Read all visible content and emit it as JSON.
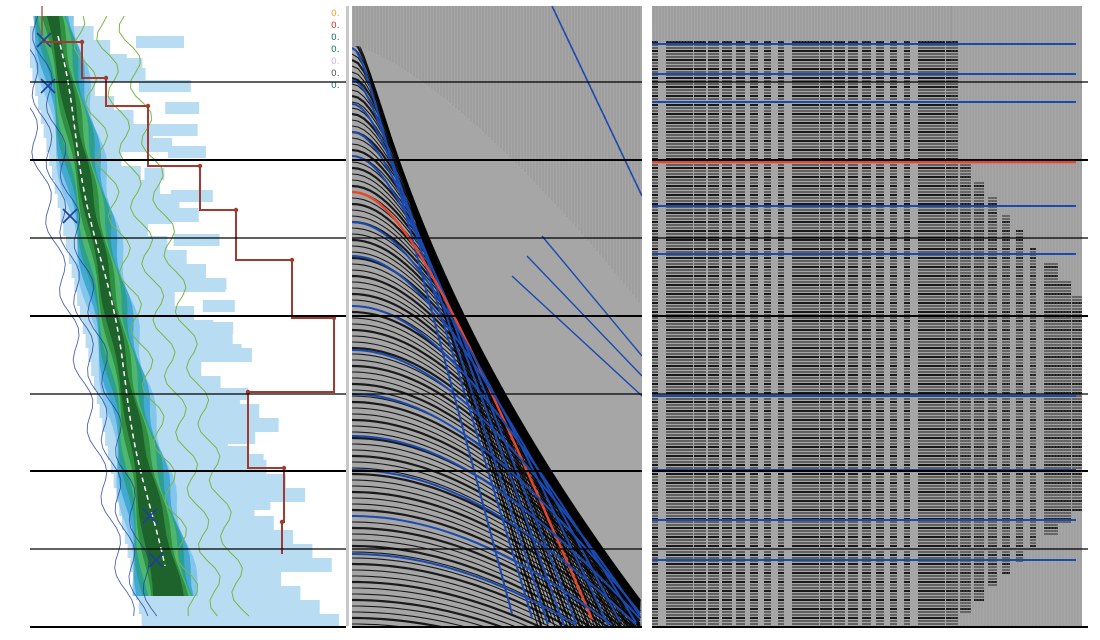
{
  "panels": [
    {
      "id": "semblance",
      "name": "velocity semblance panel"
    },
    {
      "id": "cmp",
      "name": "cmp gather panel"
    },
    {
      "id": "nmo",
      "name": "nmo corrected gather panel"
    }
  ],
  "legend": {
    "items": [
      {
        "label": "0.",
        "color": "#f0a030"
      },
      {
        "label": "0.",
        "color": "#e03030"
      },
      {
        "label": "0.",
        "color": "#1f7a6e"
      },
      {
        "label": "0.",
        "color": "#1f7a6e"
      },
      {
        "label": "0.",
        "color": "#c8b4e8"
      },
      {
        "label": "0.",
        "color": "#555555"
      },
      {
        "label": "0.",
        "color": "#1f7a6e"
      }
    ]
  },
  "colors": {
    "semblance_levels": [
      "#b8dcf2",
      "#7ec3ea",
      "#3da6cf",
      "#2b9e8a",
      "#4fb86a",
      "#2e8b3e",
      "#1d5f2a"
    ],
    "contour": "#7ab648",
    "picks": "#1f3f9f",
    "interval_velocity": "#a33a30",
    "rms_trend": "#ffffff",
    "horizon": "#1a4ab0",
    "highlight_horizon": "#e8452a",
    "seismic_wiggle": "#000000",
    "timing_line": "#000000"
  },
  "icons": [
    "pick-cross-icon"
  ]
}
